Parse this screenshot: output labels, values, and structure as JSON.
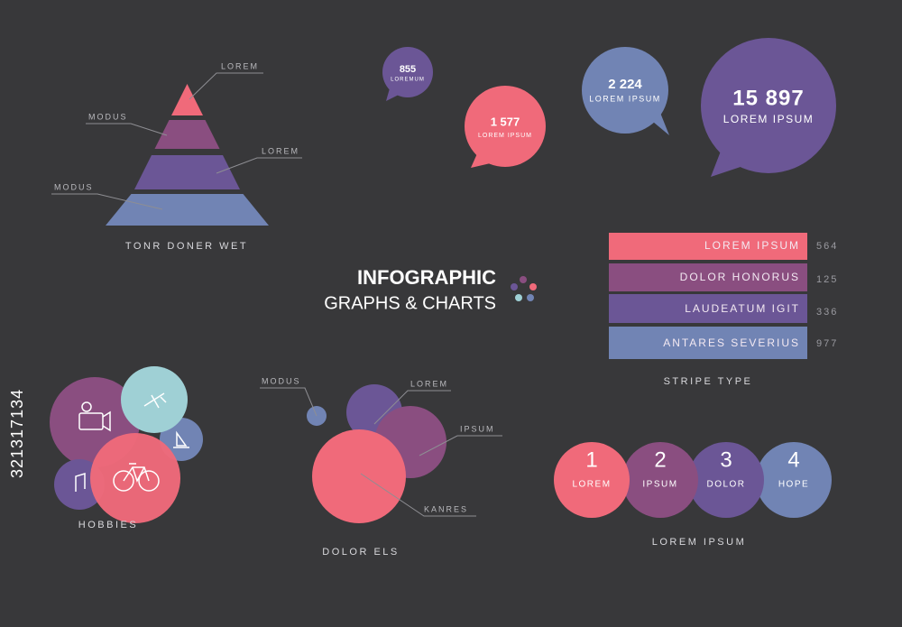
{
  "header": {
    "title": "INFOGRAPHIC",
    "subtitle": "GRAPHS & CHARTS"
  },
  "pyramid": {
    "labels": [
      "LOREM",
      "MODUS",
      "LOREM",
      "MODUS"
    ],
    "caption": "TONR DONER WET"
  },
  "bubbles": [
    {
      "value": "855",
      "label": "LOREMUM"
    },
    {
      "value": "1 577",
      "label": "LOREM IPSUM"
    },
    {
      "value": "2 224",
      "label": "LOREM IPSUM"
    },
    {
      "value": "15 897",
      "label": "LOREM IPSUM"
    }
  ],
  "stripes": {
    "rows": [
      {
        "label": "LOREM IPSUM",
        "value": 564
      },
      {
        "label": "DOLOR HONORUS",
        "value": 125
      },
      {
        "label": "LAUDEATUM IGIT",
        "value": 336
      },
      {
        "label": "ANTARES SEVERIUS",
        "value": 977
      }
    ],
    "caption": "STRIPE TYPE"
  },
  "hobbies": {
    "caption": "HOBBIES"
  },
  "circles": {
    "labels": [
      "MODUS",
      "LOREM",
      "IPSUM",
      "KANRES"
    ],
    "caption": "DOLOR ELS"
  },
  "steps": {
    "items": [
      {
        "number": 1,
        "label": "LOREM"
      },
      {
        "number": 2,
        "label": "IPSUM"
      },
      {
        "number": 3,
        "label": "DOLOR"
      },
      {
        "number": 4,
        "label": "HOPE"
      }
    ],
    "caption": "LOREM IPSUM"
  },
  "stock_id": "321317134"
}
